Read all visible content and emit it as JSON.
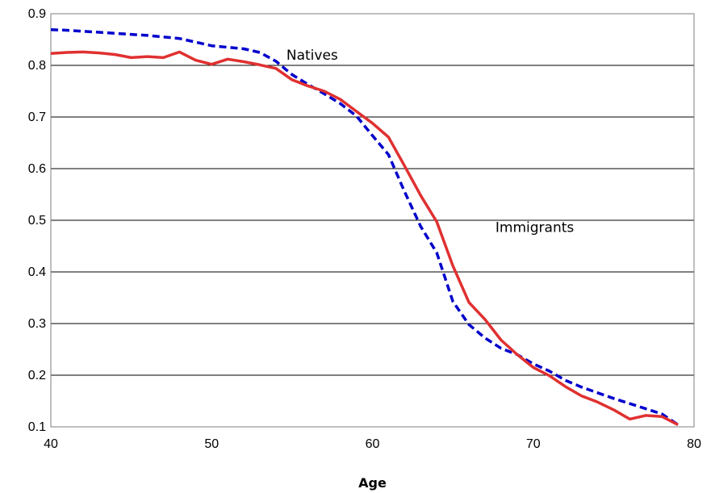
{
  "chart_data": {
    "type": "line",
    "title": "",
    "xlabel": "Age",
    "ylabel": "",
    "xlim": [
      40,
      80
    ],
    "ylim": [
      0.1,
      0.9
    ],
    "x_ticks": [
      40,
      50,
      60,
      70,
      80
    ],
    "y_ticks": [
      0.1,
      0.2,
      0.3,
      0.4,
      0.5,
      0.6,
      0.7,
      0.8,
      0.9
    ],
    "x_tick_labels": [
      "40",
      "50",
      "60",
      "70",
      "80"
    ],
    "y_tick_labels": [
      "0.1",
      "0.2",
      "0.3",
      "0.4",
      "0.5",
      "0.6",
      "0.7",
      "0.8",
      "0.9"
    ],
    "grid": "horizontal",
    "legend": "inline labels",
    "series": [
      {
        "name": "Natives",
        "color": "#0000cc",
        "style": "dashed",
        "x": [
          40,
          41,
          42,
          43,
          44,
          45,
          46,
          47,
          48,
          49,
          50,
          51,
          52,
          53,
          54,
          55,
          56,
          57,
          58,
          59,
          60,
          61,
          62,
          63,
          64,
          65,
          66,
          67,
          68,
          69,
          70,
          71,
          72,
          73,
          74,
          75,
          76,
          77,
          78,
          79
        ],
        "values": [
          0.869,
          0.868,
          0.866,
          0.864,
          0.862,
          0.86,
          0.858,
          0.855,
          0.852,
          0.845,
          0.838,
          0.835,
          0.832,
          0.825,
          0.808,
          0.782,
          0.763,
          0.745,
          0.726,
          0.702,
          0.664,
          0.627,
          0.555,
          0.488,
          0.437,
          0.343,
          0.298,
          0.272,
          0.252,
          0.24,
          0.222,
          0.208,
          0.19,
          0.177,
          0.166,
          0.155,
          0.145,
          0.135,
          0.125,
          0.104
        ]
      },
      {
        "name": "Immigrants",
        "color": "#e03030",
        "style": "solid",
        "x": [
          40,
          41,
          42,
          43,
          44,
          45,
          46,
          47,
          48,
          49,
          50,
          51,
          52,
          53,
          54,
          55,
          56,
          57,
          58,
          59,
          60,
          61,
          62,
          63,
          64,
          65,
          66,
          67,
          68,
          69,
          70,
          71,
          72,
          73,
          74,
          75,
          76,
          77,
          78,
          79
        ],
        "values": [
          0.823,
          0.825,
          0.826,
          0.824,
          0.821,
          0.815,
          0.817,
          0.815,
          0.826,
          0.81,
          0.802,
          0.812,
          0.807,
          0.801,
          0.794,
          0.772,
          0.76,
          0.75,
          0.734,
          0.711,
          0.688,
          0.661,
          0.605,
          0.548,
          0.497,
          0.412,
          0.341,
          0.308,
          0.268,
          0.24,
          0.215,
          0.199,
          0.178,
          0.16,
          0.148,
          0.133,
          0.115,
          0.122,
          0.12,
          0.104
        ]
      }
    ],
    "annotations": [
      {
        "text": "Natives",
        "x": 55,
        "y": 0.82
      },
      {
        "text": "Immigrants",
        "x": 68,
        "y": 0.487
      }
    ]
  }
}
